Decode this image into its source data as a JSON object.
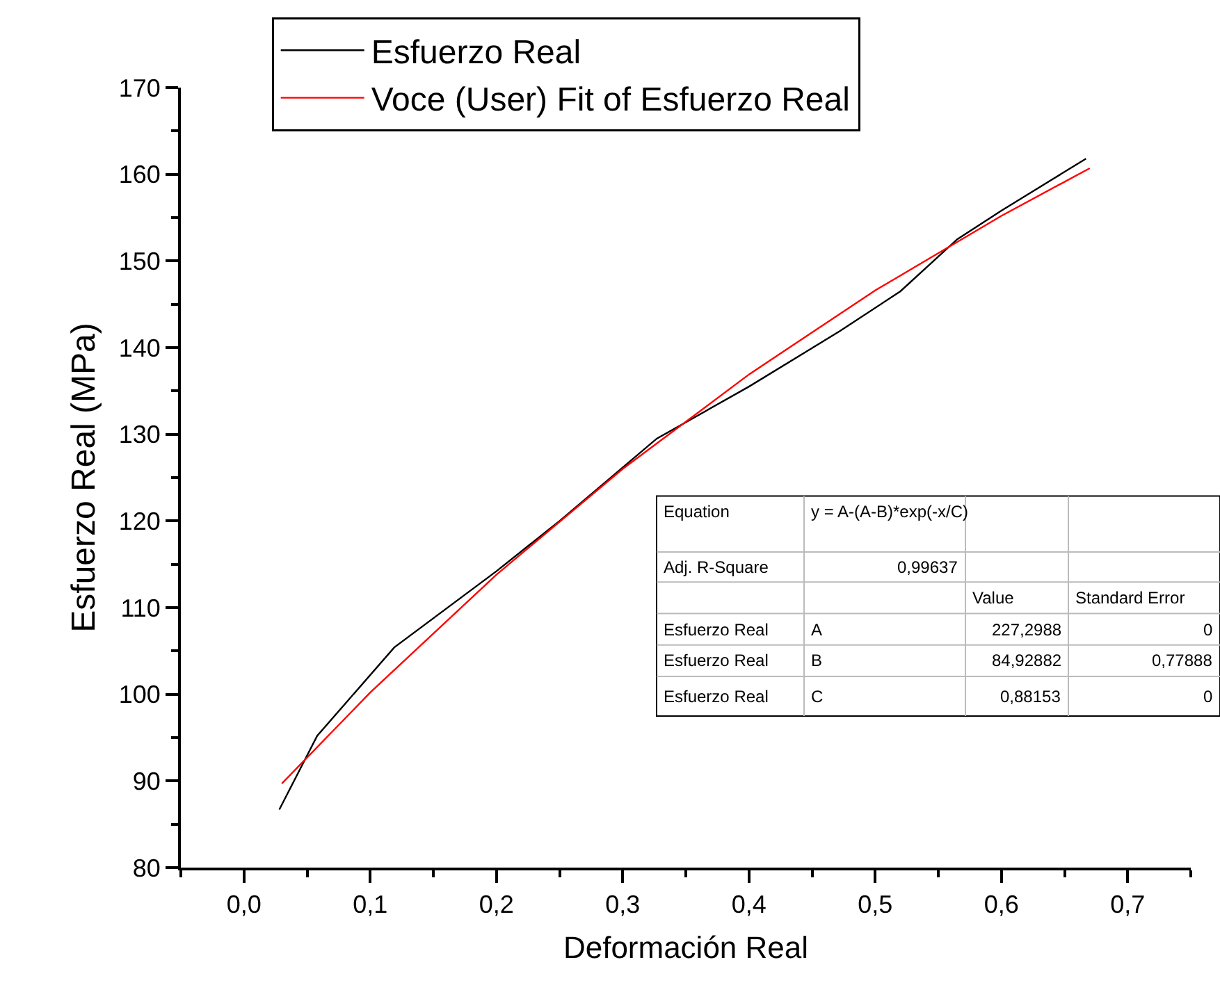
{
  "chart_data": {
    "type": "line",
    "xlabel": "Deformación Real",
    "ylabel": "Esfuerzo Real (MPa)",
    "xlim": [
      -0.05,
      0.75
    ],
    "xticks": [
      {
        "value": 0,
        "label": "0,0"
      },
      {
        "value": 0.1,
        "label": "0,1"
      },
      {
        "value": 0.2,
        "label": "0,2"
      },
      {
        "value": 0.3,
        "label": "0,3"
      },
      {
        "value": 0.4,
        "label": "0,4"
      },
      {
        "value": 0.5,
        "label": "0,5"
      },
      {
        "value": 0.6,
        "label": "0,6"
      },
      {
        "value": 0.7,
        "label": "0,7"
      }
    ],
    "ylim": [
      80,
      170
    ],
    "yticks": [
      80,
      90,
      100,
      110,
      120,
      130,
      140,
      150,
      160,
      170
    ],
    "legend": "top",
    "marker": "none",
    "line_style": "solid",
    "series": [
      {
        "name": "Esfuerzo Real",
        "color": "#000000",
        "x": [
          0.028,
          0.058,
          0.119,
          0.2,
          0.25,
          0.327,
          0.4,
          0.472,
          0.52,
          0.565,
          0.6,
          0.667
        ],
        "values": [
          86.7,
          95.2,
          105.4,
          114.2,
          120.0,
          129.5,
          135.5,
          141.9,
          146.5,
          152.5,
          155.8,
          161.8
        ]
      },
      {
        "name": "Voce (User) Fit of Esfuerzo Real",
        "color": "#ff0000",
        "x": [
          0.03,
          0.1,
          0.2,
          0.3,
          0.4,
          0.5,
          0.6,
          0.67
        ],
        "values": [
          89.7,
          100.2,
          113.8,
          126.0,
          136.9,
          146.6,
          155.2,
          160.7
        ]
      }
    ],
    "annotations": [
      "Equation",
      "y = A-(A-B)*exp(-x/C)",
      "Adj. R-Square",
      "0,99637",
      "Value",
      "Standard Error",
      "Esfuerzo Real",
      "A",
      "227,2988",
      "0",
      "Esfuerzo Real",
      "B",
      "84,92882",
      "0,77888",
      "Esfuerzo Real",
      "C",
      "0,88153",
      "0"
    ]
  }
}
